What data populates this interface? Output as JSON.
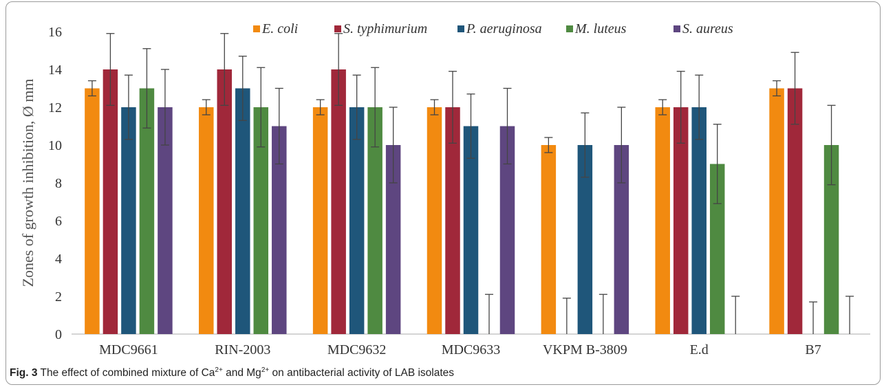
{
  "chart_data": {
    "type": "bar",
    "ylabel": "Zones of growth inhibition, Ø mm",
    "xlabel": "",
    "ylim": [
      0,
      16
    ],
    "yticks": [
      0,
      2,
      4,
      6,
      8,
      10,
      12,
      14,
      16
    ],
    "grid": false,
    "legend_position": "top",
    "categories": [
      "MDC9661",
      "RIN-2003",
      "MDC9632",
      "MDC9633",
      "VKPM B-3809",
      "E.d",
      "B7"
    ],
    "series": [
      {
        "name": "E. coli",
        "color": "#F28A10",
        "values": [
          13,
          12,
          12,
          12,
          10,
          12,
          13
        ],
        "errors": [
          0.4,
          0.4,
          0.4,
          0.4,
          0.4,
          0.4,
          0.4
        ]
      },
      {
        "name": "S. typhimurium",
        "color": "#A0283A",
        "values": [
          14,
          14,
          14,
          12,
          0,
          12,
          13
        ],
        "errors": [
          1.9,
          1.9,
          1.9,
          1.9,
          1.9,
          1.9,
          1.9
        ]
      },
      {
        "name": "P. aeruginosa",
        "color": "#1F567A",
        "values": [
          12,
          13,
          12,
          11,
          10,
          12,
          0
        ],
        "errors": [
          1.7,
          1.7,
          1.7,
          1.7,
          1.7,
          1.7,
          1.7
        ]
      },
      {
        "name": "M. luteus",
        "color": "#4F8A41",
        "values": [
          13,
          12,
          12,
          0,
          0,
          9,
          10
        ],
        "errors": [
          2.1,
          2.1,
          2.1,
          2.1,
          2.1,
          2.1,
          2.1
        ]
      },
      {
        "name": "S. aureus",
        "color": "#5E4680",
        "values": [
          12,
          11,
          10,
          11,
          10,
          0,
          0
        ],
        "errors": [
          2.0,
          2.0,
          2.0,
          2.0,
          2.0,
          2.0,
          2.0
        ]
      }
    ]
  },
  "caption": {
    "label": "Fig. 3",
    "text_before": "The effect of combined mixture of Ca",
    "sup1": "2+",
    "text_middle": " and Mg",
    "sup2": "2+",
    "text_after": " on antibacterial activity of LAB isolates"
  }
}
